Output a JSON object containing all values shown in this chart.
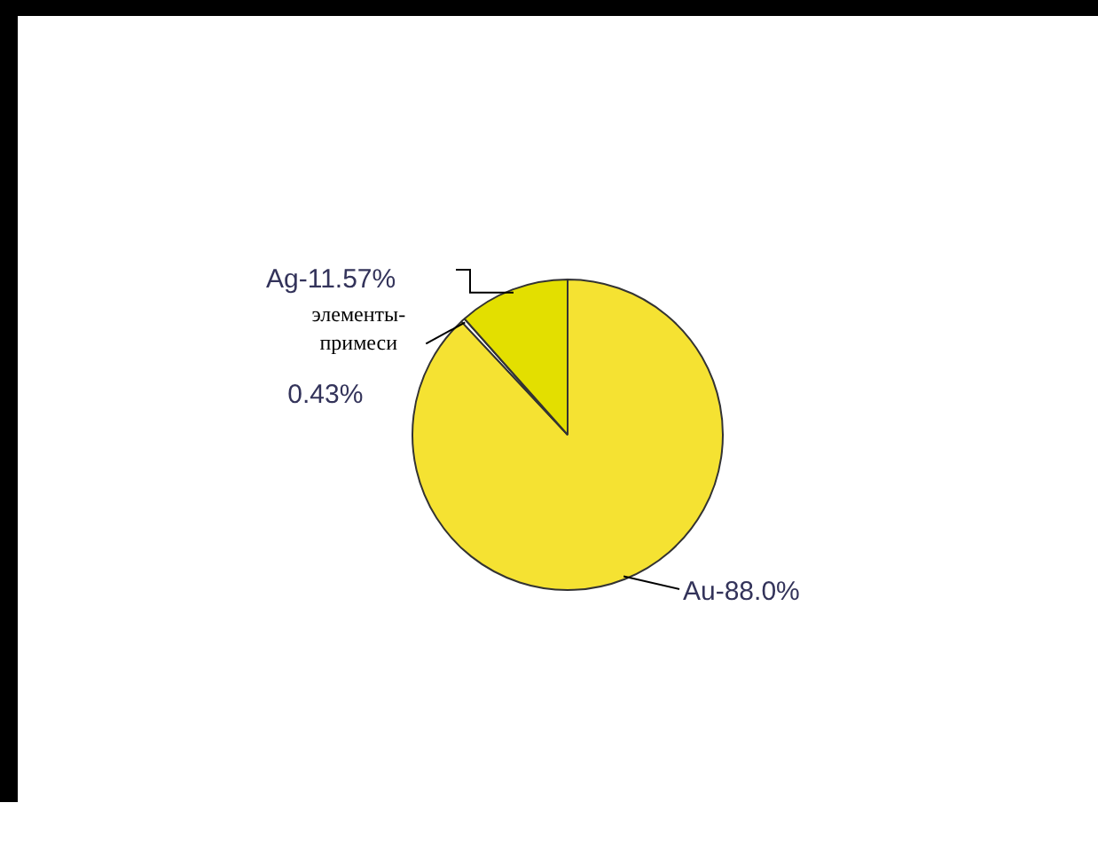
{
  "chart_data": {
    "type": "pie",
    "categories": [
      "Au",
      "элементы-примеси",
      "Ag"
    ],
    "values": [
      88.0,
      0.43,
      11.57
    ],
    "value_labels": [
      "88.0%",
      "0.43%",
      "11.57%"
    ],
    "colors": [
      "#f5e232",
      "#ffffff",
      "#e3df00"
    ],
    "legend": false
  }
}
